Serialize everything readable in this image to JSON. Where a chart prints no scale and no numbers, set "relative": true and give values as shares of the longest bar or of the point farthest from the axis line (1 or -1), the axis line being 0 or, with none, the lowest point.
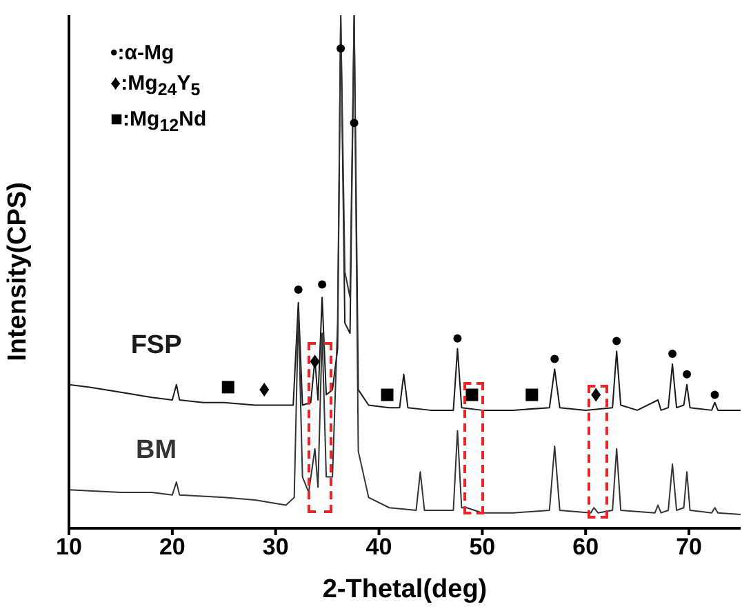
{
  "chart_data": {
    "type": "line",
    "relative": true,
    "xlabel": "2-Thetal(deg)",
    "ylabel": "Intensity(CPS)",
    "xlim": [
      10,
      75
    ],
    "xticks": [
      10,
      20,
      30,
      40,
      50,
      60,
      70
    ],
    "annotations": [
      "•:α-Mg",
      "♦:Mg$_{24}$Y$_{5}$",
      "■:Mg$_{12}$Nd"
    ],
    "series": [
      {
        "name": "FSP",
        "color": "#1a1a1a",
        "x": [
          10,
          12,
          15,
          18,
          20,
          20.4,
          20.7,
          23,
          25,
          28,
          30,
          31.7,
          32.2,
          32.6,
          33.4,
          33.8,
          34.1,
          34.5,
          34.9,
          35.5,
          36.0,
          36.3,
          36.7,
          37.2,
          37.6,
          38.0,
          39,
          41,
          42.0,
          42.4,
          42.8,
          45,
          47.2,
          47.6,
          48.0,
          50,
          53,
          56.5,
          57.0,
          57.5,
          60,
          62.6,
          63.0,
          63.4,
          65,
          67,
          67.3,
          68.0,
          68.4,
          68.8,
          69.5,
          69.8,
          70.1,
          72.2,
          72.5,
          72.8,
          75
        ],
        "values": [
          0.28,
          0.275,
          0.265,
          0.255,
          0.25,
          0.28,
          0.25,
          0.245,
          0.245,
          0.24,
          0.24,
          0.24,
          0.44,
          0.24,
          0.245,
          0.33,
          0.25,
          0.45,
          0.26,
          0.27,
          0.35,
          1,
          0.4,
          0.38,
          1,
          0.27,
          0.24,
          0.235,
          0.235,
          0.3,
          0.235,
          0.23,
          0.23,
          0.35,
          0.235,
          0.23,
          0.23,
          0.235,
          0.31,
          0.235,
          0.23,
          0.235,
          0.345,
          0.24,
          0.23,
          0.25,
          0.23,
          0.235,
          0.32,
          0.235,
          0.24,
          0.28,
          0.235,
          0.23,
          0.245,
          0.23,
          0.23
        ]
      },
      {
        "name": "BM",
        "color": "#333333",
        "x": [
          10,
          15,
          18,
          20,
          20.4,
          20.7,
          25,
          28,
          31,
          31.8,
          32.2,
          32.6,
          33.2,
          33.8,
          34.1,
          34.5,
          34.9,
          35.5,
          36.0,
          36.3,
          36.7,
          37.2,
          37.6,
          38.0,
          39,
          41,
          43.6,
          44.0,
          44.4,
          47.2,
          47.6,
          48.0,
          48.5,
          50,
          53,
          56.5,
          57.0,
          57.5,
          60.5,
          60.8,
          61.2,
          62.6,
          63.0,
          63.4,
          66.7,
          67.0,
          67.3,
          68.0,
          68.4,
          68.8,
          69.5,
          69.8,
          70.1,
          72.2,
          72.5,
          72.8,
          75
        ],
        "values": [
          0.075,
          0.07,
          0.07,
          0.065,
          0.09,
          0.065,
          0.06,
          0.055,
          0.045,
          0.06,
          0.42,
          0.1,
          0.07,
          0.155,
          0.08,
          0.38,
          0.1,
          0.1,
          0.4,
          1,
          0.5,
          0.45,
          1,
          0.15,
          0.06,
          0.04,
          0.035,
          0.11,
          0.035,
          0.035,
          0.19,
          0.04,
          0.04,
          0.03,
          0.03,
          0.035,
          0.16,
          0.035,
          0.03,
          0.04,
          0.03,
          0.035,
          0.155,
          0.035,
          0.03,
          0.045,
          0.03,
          0.035,
          0.125,
          0.035,
          0.04,
          0.11,
          0.035,
          0.03,
          0.04,
          0.03,
          0.027
        ]
      },
      {
        "type": "scatter",
        "marker": "circle",
        "color": "#000000",
        "x": [
          32.2,
          34.5,
          36.3,
          37.6,
          47.6,
          57.0,
          63.0,
          68.4,
          69.8,
          72.5
        ],
        "values": [
          0.465,
          0.475,
          0.935,
          0.79,
          0.37,
          0.33,
          0.365,
          0.34,
          0.3,
          0.26
        ]
      },
      {
        "type": "scatter",
        "marker": "diamond",
        "color": "#000000",
        "x": [
          28.9,
          33.8,
          61.0
        ],
        "values": [
          0.27,
          0.325,
          0.26
        ]
      },
      {
        "type": "scatter",
        "marker": "square",
        "color": "#000000",
        "x": [
          25.4,
          40.8,
          49.0,
          54.8
        ],
        "values": [
          0.275,
          0.26,
          0.26,
          0.26
        ]
      }
    ]
  }
}
